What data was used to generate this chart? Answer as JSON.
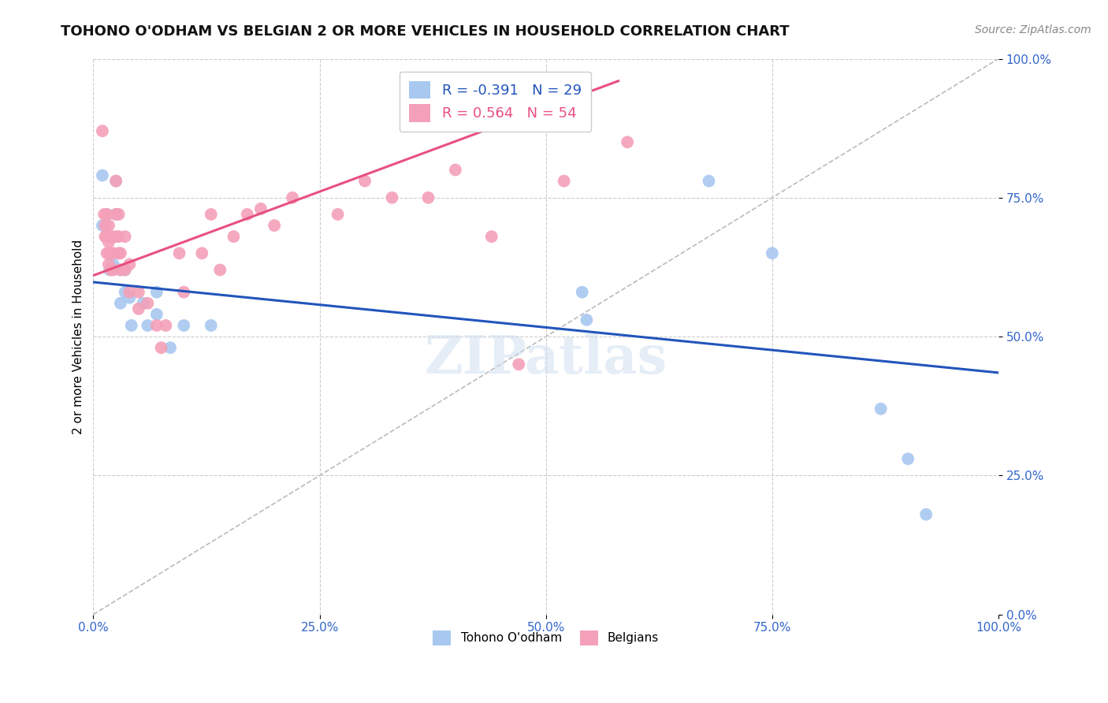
{
  "title": "TOHONO O'ODHAM VS BELGIAN 2 OR MORE VEHICLES IN HOUSEHOLD CORRELATION CHART",
  "source": "Source: ZipAtlas.com",
  "ylabel": "2 or more Vehicles in Household",
  "xlim": [
    0.0,
    1.0
  ],
  "ylim": [
    0.0,
    1.0
  ],
  "watermark": "ZIPatlas",
  "legend": {
    "R_tohono": "-0.391",
    "N_tohono": "29",
    "R_belgians": "0.564",
    "N_belgians": "54"
  },
  "tohono_color": "#A8C8F0",
  "belgian_color": "#F4A0B8",
  "tohono_line_color": "#2255BB",
  "belgian_line_color": "#E85080",
  "tohono_points": [
    [
      0.01,
      0.79
    ],
    [
      0.01,
      0.7
    ],
    [
      0.015,
      0.72
    ],
    [
      0.015,
      0.68
    ],
    [
      0.018,
      0.65
    ],
    [
      0.018,
      0.62
    ],
    [
      0.022,
      0.63
    ],
    [
      0.025,
      0.78
    ],
    [
      0.025,
      0.72
    ],
    [
      0.03,
      0.62
    ],
    [
      0.03,
      0.56
    ],
    [
      0.035,
      0.62
    ],
    [
      0.035,
      0.58
    ],
    [
      0.04,
      0.57
    ],
    [
      0.042,
      0.52
    ],
    [
      0.055,
      0.56
    ],
    [
      0.06,
      0.52
    ],
    [
      0.07,
      0.58
    ],
    [
      0.07,
      0.54
    ],
    [
      0.085,
      0.48
    ],
    [
      0.1,
      0.52
    ],
    [
      0.13,
      0.52
    ],
    [
      0.54,
      0.58
    ],
    [
      0.545,
      0.53
    ],
    [
      0.68,
      0.78
    ],
    [
      0.75,
      0.65
    ],
    [
      0.87,
      0.37
    ],
    [
      0.9,
      0.28
    ],
    [
      0.92,
      0.18
    ]
  ],
  "belgian_points": [
    [
      0.01,
      0.87
    ],
    [
      0.012,
      0.72
    ],
    [
      0.013,
      0.7
    ],
    [
      0.013,
      0.68
    ],
    [
      0.015,
      0.72
    ],
    [
      0.015,
      0.68
    ],
    [
      0.015,
      0.65
    ],
    [
      0.017,
      0.7
    ],
    [
      0.017,
      0.67
    ],
    [
      0.017,
      0.63
    ],
    [
      0.018,
      0.68
    ],
    [
      0.018,
      0.65
    ],
    [
      0.02,
      0.68
    ],
    [
      0.02,
      0.65
    ],
    [
      0.02,
      0.62
    ],
    [
      0.022,
      0.65
    ],
    [
      0.022,
      0.62
    ],
    [
      0.025,
      0.78
    ],
    [
      0.025,
      0.72
    ],
    [
      0.025,
      0.68
    ],
    [
      0.028,
      0.72
    ],
    [
      0.028,
      0.68
    ],
    [
      0.028,
      0.65
    ],
    [
      0.03,
      0.65
    ],
    [
      0.03,
      0.62
    ],
    [
      0.035,
      0.68
    ],
    [
      0.035,
      0.62
    ],
    [
      0.04,
      0.63
    ],
    [
      0.04,
      0.58
    ],
    [
      0.05,
      0.58
    ],
    [
      0.05,
      0.55
    ],
    [
      0.06,
      0.56
    ],
    [
      0.07,
      0.52
    ],
    [
      0.075,
      0.48
    ],
    [
      0.08,
      0.52
    ],
    [
      0.095,
      0.65
    ],
    [
      0.1,
      0.58
    ],
    [
      0.12,
      0.65
    ],
    [
      0.13,
      0.72
    ],
    [
      0.14,
      0.62
    ],
    [
      0.155,
      0.68
    ],
    [
      0.17,
      0.72
    ],
    [
      0.185,
      0.73
    ],
    [
      0.2,
      0.7
    ],
    [
      0.22,
      0.75
    ],
    [
      0.27,
      0.72
    ],
    [
      0.3,
      0.78
    ],
    [
      0.33,
      0.75
    ],
    [
      0.37,
      0.75
    ],
    [
      0.4,
      0.8
    ],
    [
      0.44,
      0.68
    ],
    [
      0.47,
      0.45
    ],
    [
      0.52,
      0.78
    ],
    [
      0.59,
      0.85
    ]
  ],
  "diagonal_line": {
    "x": [
      0.0,
      1.0
    ],
    "y": [
      0.0,
      1.0
    ]
  },
  "background_color": "#FFFFFF",
  "grid_color": "#CCCCCC",
  "title_fontsize": 13,
  "source_fontsize": 10,
  "tick_fontsize": 11,
  "ylabel_fontsize": 11,
  "legend_fontsize": 13,
  "watermark_fontsize": 48
}
